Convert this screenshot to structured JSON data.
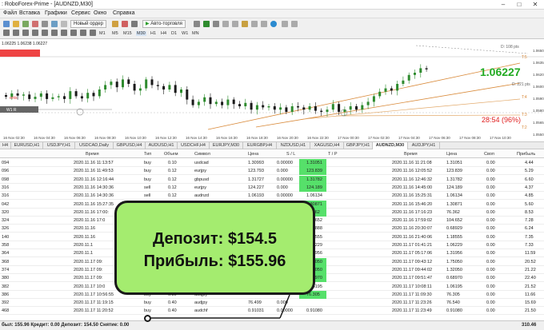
{
  "window": {
    "title": ": RoboForex-Prime - [AUDNZD,M30]",
    "controls": [
      "–",
      "□",
      "✕"
    ]
  },
  "menu": [
    "Файл",
    "Вставка",
    "Графики",
    "Сервис",
    "Окно",
    "Справка"
  ],
  "toolbar": {
    "new_order": "Новый ордер",
    "autotrading": "Авто-торговля",
    "timeframes": [
      "M1",
      "M5",
      "M15",
      "M30",
      "H1",
      "H4",
      "D1",
      "W1",
      "MN"
    ]
  },
  "chart": {
    "header": "1.06225 1.06238 1.06227",
    "price_labels": [
      "1.0650",
      "1.0635",
      "1.0620",
      "1.0600",
      "1.0590",
      "1.0580",
      "1.0565",
      "1.0550"
    ],
    "big_price": "1.06227",
    "timer": "28:54 (96%)",
    "level_labels": [
      "D: 108 pts",
      "D: 221 pts",
      "T:5",
      "T:4",
      "T:3",
      "T:2"
    ],
    "left_labels": [
      "ents",
      "W1 R"
    ],
    "x_labels": [
      "16 Nov 02:30",
      "16 Nov 04:30",
      "16 Nov 06:30",
      "16 Nov 08:30",
      "16 Nov 10:30",
      "16 Nov 12:30",
      "16 Nov 14:30",
      "16 Nov 16:30",
      "16 Nov 18:30",
      "16 Nov 20:30",
      "16 Nov 22:30",
      "17 Nov 00:30",
      "17 Nov 02:30",
      "17 Nov 04:30",
      "17 Nov 06:30",
      "17 Nov 08:30",
      "17 Nov 10:30"
    ],
    "colors": {
      "bull": "#2e8b2e",
      "bear": "#1a1a1a",
      "fib": "#d98a3a",
      "price_green": "#22aa22",
      "timer_red": "#e02020"
    }
  },
  "tabs": {
    "items": [
      "H4",
      "EURUSD,H1",
      "USDJPY,H1",
      "USDCAD,Daily",
      "GBPUSD,H4",
      "AUDUSD,H1",
      "USDCHF,H4",
      "EURJPY,M30",
      "EURGBP,H4",
      "NZDUSD,H1",
      "XAGUSD,H4",
      "GBPJPY,H1",
      "AUDNZD,M30",
      "AUDJPY,H1"
    ],
    "active_index": 12
  },
  "trades": {
    "headers": [
      "Время",
      "Тип",
      "Объем",
      "Символ",
      "Цена",
      "S / L",
      "T / P",
      "Время",
      "Цена",
      "Своп",
      "Прибыль"
    ],
    "rows": [
      {
        "id": "094",
        "open_time": "2020.11.16 11:13:57",
        "type": "buy",
        "volume": "0.10",
        "symbol": "usdcad",
        "price": "1.30993",
        "sl": "0.00000",
        "tp": "1.31051",
        "close_time": "2020.11.16 11:21:08",
        "close_price": "1.31051",
        "swap": "0.00",
        "profit": "4.44",
        "tp_hl": true
      },
      {
        "id": "096",
        "open_time": "2020.11.16 11:49:53",
        "type": "buy",
        "volume": "0.12",
        "symbol": "eurjpy",
        "price": "123.793",
        "sl": "0.000",
        "tp": "123.839",
        "close_time": "2020.11.16 12:05:52",
        "close_price": "123.839",
        "swap": "0.00",
        "profit": "5.29",
        "tp_hl": true
      },
      {
        "id": "098",
        "open_time": "2020.11.16 12:16:44",
        "type": "buy",
        "volume": "0.12",
        "symbol": "gbpusd",
        "price": "1.31727",
        "sl": "0.00000",
        "tp": "1.31782",
        "close_time": "2020.11.16 12:46:32",
        "close_price": "1.31782",
        "swap": "0.00",
        "profit": "6.60",
        "tp_hl": true
      },
      {
        "id": "316",
        "open_time": "2020.11.16 14:30:36",
        "type": "sell",
        "volume": "0.12",
        "symbol": "eurjpy",
        "price": "124.227",
        "sl": "0.000",
        "tp": "124.189",
        "close_time": "2020.11.16 14:45:00",
        "close_price": "124.189",
        "swap": "0.00",
        "profit": "4.37",
        "tp_hl": true
      },
      {
        "id": "316",
        "open_time": "2020.11.16 14:30:36",
        "type": "sell",
        "volume": "0.12",
        "symbol": "audnzd",
        "price": "1.06193",
        "sl": "0.00000",
        "tp": "1.06134",
        "close_time": "2020.11.16 15:25:31",
        "close_price": "1.06134",
        "swap": "0.00",
        "profit": "4.85",
        "tp_hl": false
      },
      {
        "id": "042",
        "open_time": "2020.11.16 15:27:35",
        "type": "buy",
        "volume": "0.12",
        "symbol": "usdcad",
        "price": "1.30810",
        "sl": "0.00000",
        "tp": "1.30871",
        "close_time": "2020.11.16 15:46:20",
        "close_price": "1.30871",
        "swap": "0.00",
        "profit": "5.60",
        "tp_hl": true
      },
      {
        "id": "320",
        "open_time": "2020.11.16 17:00:",
        "type": "",
        "volume": "",
        "symbol": "",
        "price": "",
        "sl": "",
        "tp": "76.362",
        "close_time": "2020.11.16 17:16:23",
        "close_price": "76.362",
        "swap": "0.00",
        "profit": "8.53",
        "tp_hl": true
      },
      {
        "id": "324",
        "open_time": "2020.11.16 17:0",
        "type": "",
        "volume": "",
        "symbol": "",
        "price": "",
        "sl": "",
        "tp": "104.652",
        "close_time": "2020.11.16 17:59:02",
        "close_price": "104.652",
        "swap": "0.00",
        "profit": "7.28",
        "tp_hl": false
      },
      {
        "id": "326",
        "open_time": "2020.11.16",
        "type": "",
        "volume": "",
        "symbol": "",
        "price": "",
        "sl": "",
        "tp": "0.68888",
        "close_time": "2020.11.16 20:30:07",
        "close_price": "0.68929",
        "swap": "0.00",
        "profit": "6.24",
        "tp_hl": false
      },
      {
        "id": "140",
        "open_time": "2020.11.16",
        "type": "",
        "volume": "",
        "symbol": "",
        "price": "",
        "sl": "",
        "tp": "1.18555",
        "close_time": "2020.11.16 21:40:06",
        "close_price": "1.18555",
        "swap": "0.00",
        "profit": "7.35",
        "tp_hl": false
      },
      {
        "id": "358",
        "open_time": "2020.11.1",
        "type": "",
        "volume": "",
        "symbol": "",
        "price": "",
        "sl": "",
        "tp": "1.06229",
        "close_time": "2020.11.17 01:41:21",
        "close_price": "1.06229",
        "swap": "0.00",
        "profit": "7.33",
        "tp_hl": false
      },
      {
        "id": "364",
        "open_time": "2020.11.1",
        "type": "",
        "volume": "",
        "symbol": "",
        "price": "",
        "sl": "",
        "tp": "1.31956",
        "close_time": "2020.11.17 05:17:06",
        "close_price": "1.31956",
        "swap": "0.00",
        "profit": "11.59",
        "tp_hl": false
      },
      {
        "id": "368",
        "open_time": "2020.11.17 09:",
        "type": "",
        "volume": "",
        "symbol": "",
        "price": "",
        "sl": "",
        "tp": "1.75050",
        "close_time": "2020.11.17 09:43:12",
        "close_price": "1.75050",
        "swap": "0.00",
        "profit": "20.52",
        "tp_hl": true
      },
      {
        "id": "374",
        "open_time": "2020.11.17 09:",
        "type": "",
        "volume": "",
        "symbol": "",
        "price": "",
        "sl": "",
        "tp": "1.32050",
        "close_time": "2020.11.17 09:44:02",
        "close_price": "1.32050",
        "swap": "0.00",
        "profit": "21.22",
        "tp_hl": true
      },
      {
        "id": "380",
        "open_time": "2020.11.17 09:",
        "type": "",
        "volume": "",
        "symbol": "",
        "price": "",
        "sl": "",
        "tp": "0.68970",
        "close_time": "2020.11.17 09:51:47",
        "close_price": "0.68970",
        "swap": "0.00",
        "profit": "22.40",
        "tp_hl": true
      },
      {
        "id": "382",
        "open_time": "2020.11.17 10:0",
        "type": "",
        "volume": "",
        "symbol": "",
        "price": "",
        "sl": "",
        "tp": "1.06195",
        "close_time": "2020.11.17 10:08:11",
        "close_price": "1.06195",
        "swap": "0.00",
        "profit": "21.52",
        "tp_hl": false
      },
      {
        "id": "386",
        "open_time": "2020.11.17 10:56:55",
        "type": "buy",
        "volume": "0.30",
        "symbol": "audjpy",
        "price": "",
        "sl": "",
        "tp": "76.305",
        "close_time": "2020.11.17 11:09:30",
        "close_price": "76.305",
        "swap": "0.00",
        "profit": "11.66",
        "tp_hl": true
      },
      {
        "id": "392",
        "open_time": "2020.11.17 11:19:15",
        "type": "buy",
        "volume": "0.40",
        "symbol": "audjpy",
        "price": "76.499",
        "sl": "0.000",
        "tp": "",
        "close_time": "2020.11.17 11:23:26",
        "close_price": "76.540",
        "swap": "0.00",
        "profit": "15.69",
        "tp_hl": false
      },
      {
        "id": "468",
        "open_time": "2020.11.17 11:20:52",
        "type": "buy",
        "volume": "0.40",
        "symbol": "audchf",
        "price": "0.91031",
        "sl": "0.00000",
        "tp": "0.91080",
        "close_time": "2020.11.17 11:23:49",
        "close_price": "0.91080",
        "swap": "0.00",
        "profit": "21.50",
        "tp_hl": false
      }
    ]
  },
  "status": {
    "summary": "был: 155.96  Кредит: 0.00  Депозит: 154.50  Снятие: 0.00",
    "total": "310.46"
  },
  "callout": {
    "deposit": "Депозит: $154.5",
    "profit": "Прибыль: $155.96"
  }
}
